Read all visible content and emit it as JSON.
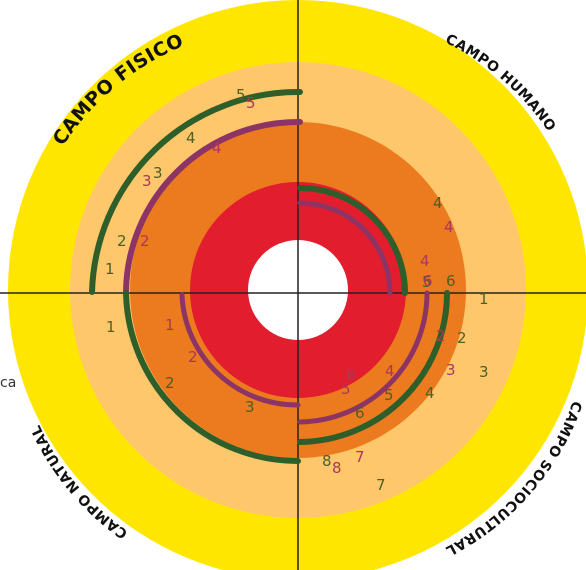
{
  "colors": {
    "band_outer": "#ffe600",
    "band_3": "#ffc76b",
    "band_2": "#ec7a1e",
    "band_1": "#e21d2e",
    "core": "#ffffff",
    "axis": "#222222",
    "green_arc": "#2e5e2a",
    "purple_arc": "#8c3465",
    "green_num": "#4e5e26",
    "purple_num": "#a8385a"
  },
  "fields": {
    "top_left": "CAMPO FISICO",
    "top_right": "CAMPO HUMANO",
    "bottom_right": "CAMPO SOCIOCULTURAL",
    "bottom_left": "CAMPO NATURAL"
  },
  "edge_fragment": "ca",
  "numbers": [
    {
      "label": "5",
      "color": "green"
    },
    {
      "label": "5",
      "color": "purple"
    },
    {
      "label": "4",
      "color": "green"
    },
    {
      "label": "4",
      "color": "purple"
    },
    {
      "label": "3",
      "color": "purple"
    },
    {
      "label": "3",
      "color": "green"
    },
    {
      "label": "2",
      "color": "green"
    },
    {
      "label": "2",
      "color": "purple"
    },
    {
      "label": "1",
      "color": "green"
    },
    {
      "label": "1",
      "color": "green"
    },
    {
      "label": "1",
      "color": "purple"
    },
    {
      "label": "2",
      "color": "purple"
    },
    {
      "label": "2",
      "color": "green"
    },
    {
      "label": "3",
      "color": "green"
    },
    {
      "label": "4",
      "color": "purple"
    },
    {
      "label": "4",
      "color": "green"
    },
    {
      "label": "4",
      "color": "purple"
    },
    {
      "label": "5",
      "color": "green"
    },
    {
      "label": "6",
      "color": "purple"
    },
    {
      "label": "6",
      "color": "green"
    },
    {
      "label": "1",
      "color": "green"
    },
    {
      "label": "2",
      "color": "purple"
    },
    {
      "label": "2",
      "color": "green"
    },
    {
      "label": "3",
      "color": "purple"
    },
    {
      "label": "3",
      "color": "green"
    },
    {
      "label": "4",
      "color": "green"
    },
    {
      "label": "5",
      "color": "green"
    },
    {
      "label": "6",
      "color": "green"
    },
    {
      "label": "8",
      "color": "green"
    },
    {
      "label": "8",
      "color": "purple"
    },
    {
      "label": "7",
      "color": "purple"
    },
    {
      "label": "7",
      "color": "green"
    },
    {
      "label": "4",
      "color": "purple"
    },
    {
      "label": "5",
      "color": "purple"
    },
    {
      "label": "6",
      "color": "purple"
    }
  ]
}
